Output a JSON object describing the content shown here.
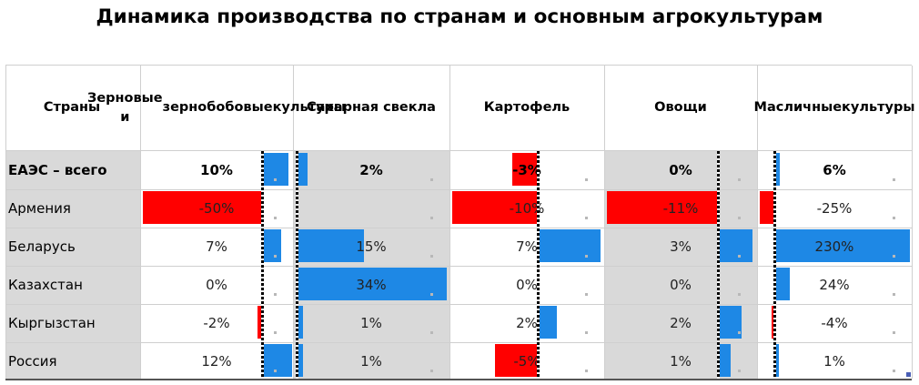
{
  "title": "Динамика производства по странам и основным агрокультурам",
  "colors": {
    "positive": "#1e88e5",
    "negative": "#ff0000",
    "shade": "#d9d9d9"
  },
  "headers": {
    "countries": "Страны",
    "columns": [
      [
        "Зерновые и",
        "зернобобовые",
        "культуры"
      ],
      [
        "Сахарная свекла"
      ],
      [
        "Картофель"
      ],
      [
        "Овощи"
      ],
      [
        "Масличные",
        "культуры"
      ]
    ]
  },
  "chart_data": {
    "type": "table",
    "title": "Динамика производства по странам и основным агрокультурам",
    "unit": "%",
    "columns": [
      "Зерновые и зернобобовые культуры",
      "Сахарная свекла",
      "Картофель",
      "Овощи",
      "Масличные культуры"
    ],
    "rows": [
      {
        "country": "ЕАЭС – всего",
        "bold": true,
        "values": [
          10,
          2,
          -3,
          0,
          6
        ],
        "labels": [
          "10%",
          "2%",
          "-3%",
          "0%",
          "6%"
        ]
      },
      {
        "country": "Армения",
        "bold": false,
        "values": [
          -50,
          null,
          -10,
          -11,
          -25
        ],
        "labels": [
          "-50%",
          "",
          "-10%",
          "-11%",
          "-25%"
        ]
      },
      {
        "country": "Беларусь",
        "bold": false,
        "values": [
          7,
          15,
          7,
          3,
          230
        ],
        "labels": [
          "7%",
          "15%",
          "7%",
          "3%",
          "230%"
        ]
      },
      {
        "country": "Казахстан",
        "bold": false,
        "values": [
          0,
          34,
          0,
          0,
          24
        ],
        "labels": [
          "0%",
          "34%",
          "0%",
          "0%",
          "24%"
        ]
      },
      {
        "country": "Кыргызстан",
        "bold": false,
        "values": [
          -2,
          1,
          2,
          2,
          -4
        ],
        "labels": [
          "-2%",
          "1%",
          "2%",
          "2%",
          "-4%"
        ]
      },
      {
        "country": "Россия",
        "bold": false,
        "values": [
          12,
          1,
          -5,
          1,
          1
        ],
        "labels": [
          "12%",
          "1%",
          "-5%",
          "1%",
          "1%"
        ]
      }
    ]
  }
}
